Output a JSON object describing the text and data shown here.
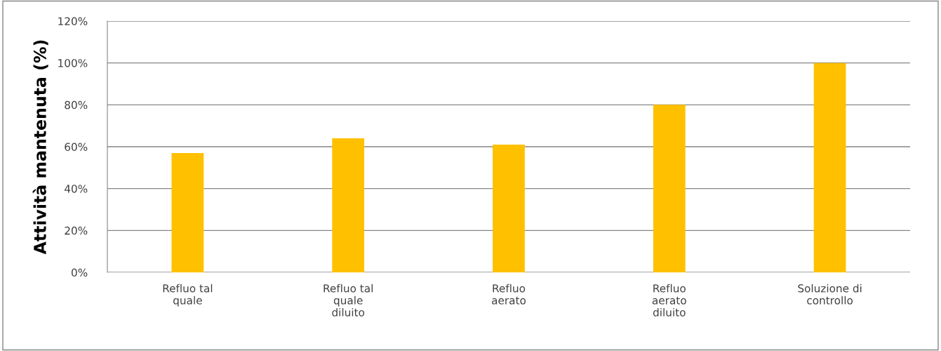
{
  "chart_data": {
    "type": "bar",
    "categories": [
      "Refluo tal\nquale",
      "Refluo tal\nquale\ndiluito",
      "Refluo\naerato",
      "Refluo\naerato\ndiluito",
      "Soluzione di\ncontrollo"
    ],
    "values": [
      57,
      64,
      61,
      80,
      100
    ],
    "color": "#ffc000",
    "ylabel": "Attività mantenuta (%)",
    "ylim": [
      0,
      120
    ],
    "yticks": [
      {
        "value": 0,
        "label": "0%"
      },
      {
        "value": 20,
        "label": "20%"
      },
      {
        "value": 40,
        "label": "40%"
      },
      {
        "value": 60,
        "label": "60%"
      },
      {
        "value": 80,
        "label": "80%"
      },
      {
        "value": 100,
        "label": "100%"
      },
      {
        "value": 120,
        "label": "120%"
      }
    ],
    "grid": "y",
    "legend": false
  }
}
